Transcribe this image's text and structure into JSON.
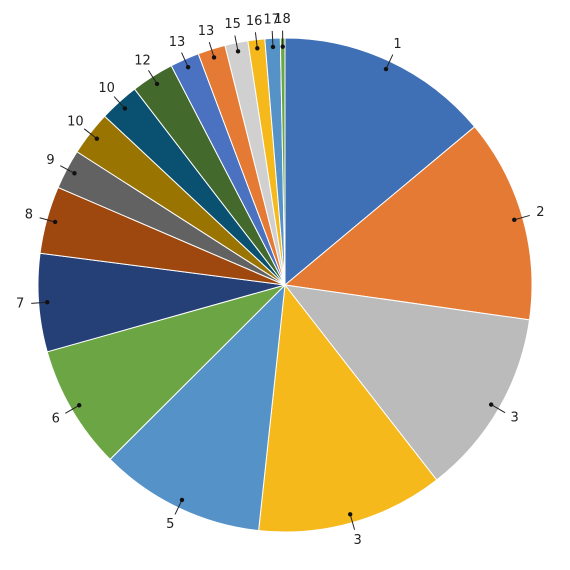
{
  "chart_data": {
    "type": "pie",
    "categories": [
      "1",
      "2",
      "3",
      "3",
      "5",
      "6",
      "7",
      "8",
      "9",
      "10",
      "10",
      "12",
      "13",
      "13",
      "15",
      "16",
      "17",
      "18"
    ],
    "values": [
      13.9,
      13.3,
      12.2,
      12.2,
      10.8,
      8.1,
      6.4,
      4.4,
      2.6,
      2.9,
      2.6,
      2.8,
      1.9,
      1.8,
      1.5,
      1.1,
      1.0,
      0.3
    ],
    "colors": [
      "#3f6fb5",
      "#e47a33",
      "#bbbbbb",
      "#f5b91c",
      "#5592c8",
      "#6ca644",
      "#253f77",
      "#9e470e",
      "#626262",
      "#9a7400",
      "#0a5070",
      "#436a2c",
      "#4a72c0",
      "#e47a33",
      "#d0d0d0",
      "#f5b91c",
      "#5592c8",
      "#6ca644"
    ]
  }
}
